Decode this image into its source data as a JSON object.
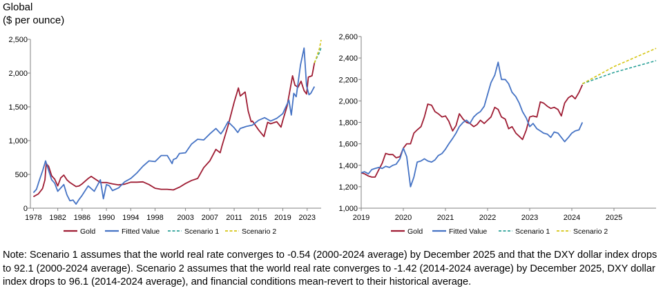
{
  "header": {
    "line1": "Global",
    "line2": "($ per ounce)"
  },
  "note": "Note: Scenario 1 assumes that the world real rate converges to -0.54 (2000-2024 average) by December 2025 and that the DXY dollar index drops to 92.1 (2000-2024 average). Scenario 2 assumes that the world real rate converges to -1.42 (2014-2024 average) by December 2025, DXY dollar index drops to 96.1 (2014-2024 average), and financial conditions mean-revert to their historical average.",
  "colors": {
    "gold": "#9e1b32",
    "fitted": "#4472c4",
    "scenario1": "#2aa198",
    "scenario2": "#d4c40f",
    "axis": "#808080"
  },
  "chart_data": [
    {
      "type": "line",
      "title": "",
      "xlabel": "",
      "ylabel": "",
      "xlim": [
        1977.5,
        2025.3
      ],
      "ylim": [
        0,
        2500
      ],
      "xticks": [
        "1978",
        "1982",
        "1986",
        "1990",
        "1994",
        "1998",
        "2003",
        "2007",
        "2011",
        "2015",
        "2019",
        "2023"
      ],
      "yticks": [
        "0",
        "500",
        "1,000",
        "1,500",
        "2,000",
        "2,500"
      ],
      "grid": false,
      "legend": "bottom",
      "series": [
        {
          "name": "Gold",
          "color": "gold",
          "x": [
            1978,
            1978.8,
            1979.5,
            1979.9,
            1980.1,
            1980.5,
            1981,
            1981.5,
            1982,
            1982.5,
            1983,
            1983.5,
            1984,
            1985,
            1985.5,
            1986,
            1987,
            1987.5,
            1988,
            1989,
            1990,
            1991,
            1992,
            1993,
            1994,
            1995,
            1996,
            1997,
            1998,
            1999,
            2000,
            2001,
            2002,
            2003,
            2004,
            2005,
            2006,
            2007,
            2008,
            2008.7,
            2009,
            2010,
            2011,
            2011.7,
            2012,
            2012.8,
            2013.3,
            2013.8,
            2014,
            2015,
            2015.9,
            2016.5,
            2017,
            2018,
            2018.7,
            2019,
            2019.7,
            2020.6,
            2021,
            2021.5,
            2022,
            2022.5,
            2022.9,
            2023.2,
            2023.8,
            2024.2
          ],
          "y": [
            170,
            210,
            290,
            420,
            660,
            620,
            480,
            430,
            330,
            450,
            490,
            420,
            380,
            320,
            330,
            360,
            440,
            470,
            440,
            380,
            380,
            360,
            345,
            355,
            385,
            385,
            390,
            350,
            295,
            280,
            280,
            270,
            310,
            365,
            410,
            440,
            600,
            700,
            870,
            820,
            920,
            1220,
            1570,
            1780,
            1660,
            1720,
            1440,
            1280,
            1290,
            1160,
            1060,
            1270,
            1250,
            1280,
            1200,
            1300,
            1510,
            1960,
            1820,
            1790,
            1880,
            1740,
            1690,
            1940,
            1960,
            2150
          ]
        },
        {
          "name": "Fitted Value",
          "color": "fitted",
          "x": [
            1978,
            1978.5,
            1979,
            1979.5,
            1980,
            1980.5,
            1981,
            1981.5,
            1982,
            1982.5,
            1983,
            1983.5,
            1984,
            1984.5,
            1985,
            1985.5,
            1986,
            1987,
            1988,
            1989,
            1989.5,
            1990,
            1990.5,
            1991,
            1992,
            1993,
            1994,
            1995,
            1996,
            1997,
            1998,
            1999,
            2000,
            2000.8,
            2001,
            2001.5,
            2002,
            2003,
            2004,
            2005,
            2006,
            2007,
            2008,
            2008.8,
            2009.2,
            2010,
            2011,
            2011.6,
            2012,
            2013,
            2014,
            2015,
            2016,
            2017,
            2018,
            2019,
            2020,
            2020.4,
            2020.8,
            2021.2,
            2021.9,
            2022.5,
            2022.9,
            2023.3,
            2023.6,
            2024.2
          ],
          "y": [
            230,
            280,
            420,
            550,
            700,
            560,
            420,
            370,
            250,
            300,
            350,
            200,
            110,
            120,
            60,
            130,
            190,
            330,
            250,
            420,
            140,
            350,
            330,
            260,
            300,
            390,
            440,
            520,
            620,
            700,
            690,
            780,
            780,
            660,
            720,
            740,
            810,
            820,
            950,
            1020,
            1010,
            1100,
            1180,
            1100,
            1150,
            1280,
            1190,
            1120,
            1180,
            1210,
            1230,
            1300,
            1340,
            1290,
            1330,
            1400,
            1600,
            1380,
            1700,
            1650,
            2120,
            2370,
            1810,
            1680,
            1700,
            1800
          ]
        },
        {
          "name": "Scenario 1",
          "color": "scenario1",
          "x": [
            2024.2,
            2024.6,
            2025.0,
            2025.3
          ],
          "y": [
            2150,
            2230,
            2300,
            2380
          ]
        },
        {
          "name": "Scenario 2",
          "color": "scenario2",
          "x": [
            2024.2,
            2024.6,
            2025.0,
            2025.3
          ],
          "y": [
            2150,
            2250,
            2360,
            2490
          ]
        }
      ]
    },
    {
      "type": "line",
      "title": "",
      "xlabel": "",
      "ylabel": "",
      "xlim": [
        2019,
        2026
      ],
      "ylim": [
        1000,
        2600
      ],
      "xticks": [
        "2019",
        "2020",
        "2021",
        "2022",
        "2023",
        "2024",
        "2025"
      ],
      "yticks": [
        "1,000",
        "1,200",
        "1,400",
        "1,600",
        "1,800",
        "2,000",
        "2,200",
        "2,400",
        "2,600"
      ],
      "grid": false,
      "legend": "bottom",
      "series": [
        {
          "name": "Gold",
          "color": "gold",
          "x": [
            2019,
            2019.08,
            2019.17,
            2019.25,
            2019.33,
            2019.42,
            2019.5,
            2019.58,
            2019.67,
            2019.75,
            2019.83,
            2019.92,
            2020,
            2020.08,
            2020.17,
            2020.25,
            2020.33,
            2020.42,
            2020.5,
            2020.58,
            2020.67,
            2020.75,
            2020.83,
            2020.92,
            2021,
            2021.08,
            2021.17,
            2021.25,
            2021.33,
            2021.42,
            2021.5,
            2021.58,
            2021.67,
            2021.75,
            2021.83,
            2021.92,
            2022,
            2022.08,
            2022.17,
            2022.25,
            2022.33,
            2022.42,
            2022.5,
            2022.58,
            2022.67,
            2022.75,
            2022.83,
            2022.92,
            2023,
            2023.08,
            2023.17,
            2023.25,
            2023.33,
            2023.42,
            2023.5,
            2023.58,
            2023.67,
            2023.75,
            2023.83,
            2023.92,
            2024,
            2024.08,
            2024.17,
            2024.25
          ],
          "y": [
            1330,
            1320,
            1300,
            1290,
            1290,
            1360,
            1420,
            1510,
            1500,
            1500,
            1470,
            1480,
            1560,
            1600,
            1600,
            1700,
            1730,
            1760,
            1850,
            1970,
            1960,
            1900,
            1880,
            1850,
            1860,
            1810,
            1720,
            1770,
            1880,
            1830,
            1800,
            1790,
            1760,
            1780,
            1820,
            1790,
            1820,
            1850,
            1940,
            1920,
            1850,
            1830,
            1740,
            1760,
            1700,
            1670,
            1640,
            1730,
            1850,
            1860,
            1850,
            1990,
            1980,
            1950,
            1930,
            1940,
            1920,
            1860,
            1980,
            2030,
            2050,
            2020,
            2080,
            2150
          ]
        },
        {
          "name": "Fitted Value",
          "color": "fitted",
          "x": [
            2019,
            2019.08,
            2019.17,
            2019.25,
            2019.33,
            2019.42,
            2019.5,
            2019.58,
            2019.67,
            2019.75,
            2019.83,
            2019.92,
            2020,
            2020.08,
            2020.17,
            2020.25,
            2020.33,
            2020.42,
            2020.5,
            2020.58,
            2020.67,
            2020.75,
            2020.83,
            2020.92,
            2021,
            2021.08,
            2021.17,
            2021.25,
            2021.33,
            2021.42,
            2021.5,
            2021.58,
            2021.67,
            2021.75,
            2021.83,
            2021.92,
            2022,
            2022.08,
            2022.17,
            2022.25,
            2022.33,
            2022.42,
            2022.5,
            2022.58,
            2022.67,
            2022.75,
            2022.83,
            2022.92,
            2023,
            2023.08,
            2023.17,
            2023.25,
            2023.33,
            2023.42,
            2023.5,
            2023.58,
            2023.67,
            2023.75,
            2023.83,
            2023.92,
            2024,
            2024.08,
            2024.17,
            2024.25
          ],
          "y": [
            1330,
            1340,
            1320,
            1360,
            1370,
            1380,
            1370,
            1390,
            1380,
            1400,
            1410,
            1460,
            1560,
            1480,
            1200,
            1290,
            1430,
            1440,
            1460,
            1440,
            1430,
            1450,
            1490,
            1510,
            1550,
            1600,
            1650,
            1700,
            1760,
            1800,
            1820,
            1790,
            1850,
            1880,
            1900,
            1950,
            2060,
            2170,
            2240,
            2360,
            2200,
            2200,
            2160,
            2080,
            2040,
            1980,
            1900,
            1840,
            1760,
            1790,
            1740,
            1720,
            1700,
            1690,
            1660,
            1710,
            1700,
            1660,
            1620,
            1660,
            1700,
            1720,
            1730,
            1800
          ]
        },
        {
          "name": "Scenario 1",
          "color": "scenario1",
          "x": [
            2024.25,
            2025,
            2026
          ],
          "y": [
            2160,
            2265,
            2375
          ]
        },
        {
          "name": "Scenario 2",
          "color": "scenario2",
          "x": [
            2024.25,
            2025,
            2026
          ],
          "y": [
            2160,
            2320,
            2490
          ]
        }
      ]
    }
  ]
}
